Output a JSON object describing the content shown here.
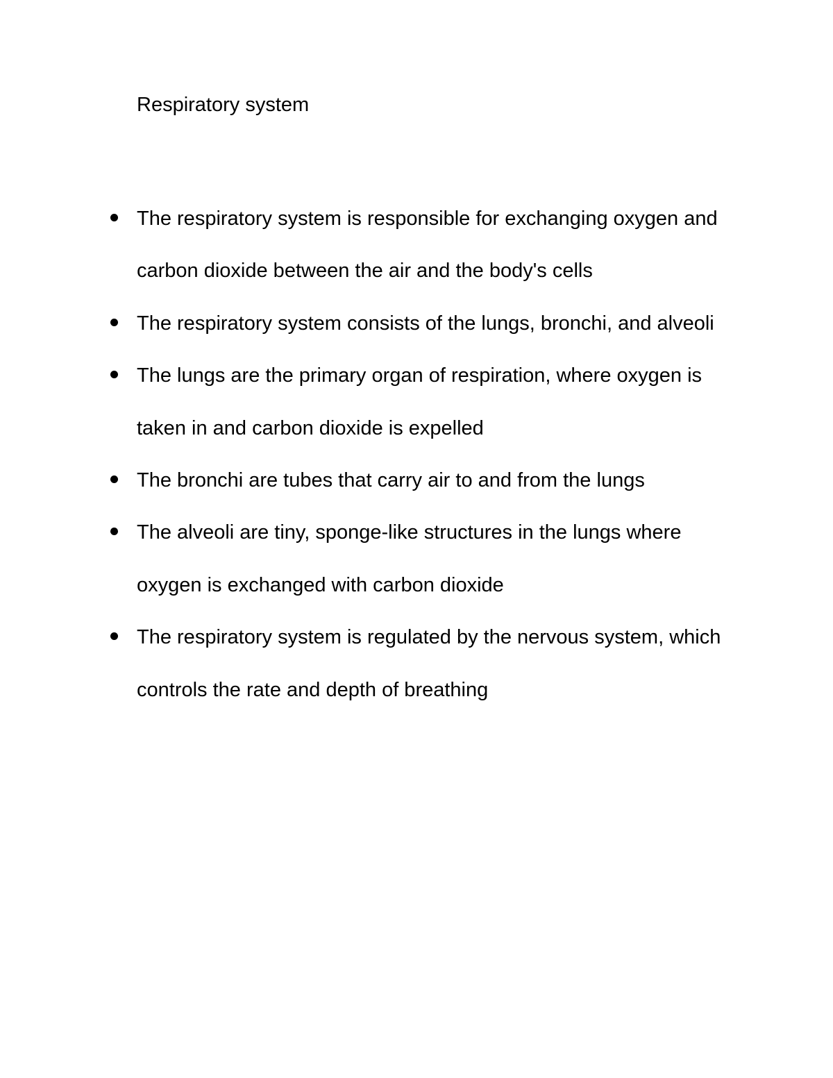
{
  "document": {
    "title": "Respiratory system",
    "title_fontsize": 29,
    "body_fontsize": 29,
    "text_color": "#000000",
    "background_color": "#ffffff",
    "bullet_color": "#000000",
    "font_family": "Arial",
    "line_height": 2.6,
    "bullets": [
      "The respiratory system is responsible for exchanging oxygen and carbon dioxide between the air and the body's cells",
      "The respiratory system consists of the lungs, bronchi, and alveoli",
      "The lungs are the primary organ of respiration, where oxygen is taken in and carbon dioxide is expelled",
      "The bronchi are tubes that carry air to and from the lungs",
      "The alveoli are tiny, sponge-like structures in the lungs where oxygen is exchanged with carbon dioxide",
      "The respiratory system is regulated by the nervous system, which controls the rate and depth of breathing"
    ]
  }
}
